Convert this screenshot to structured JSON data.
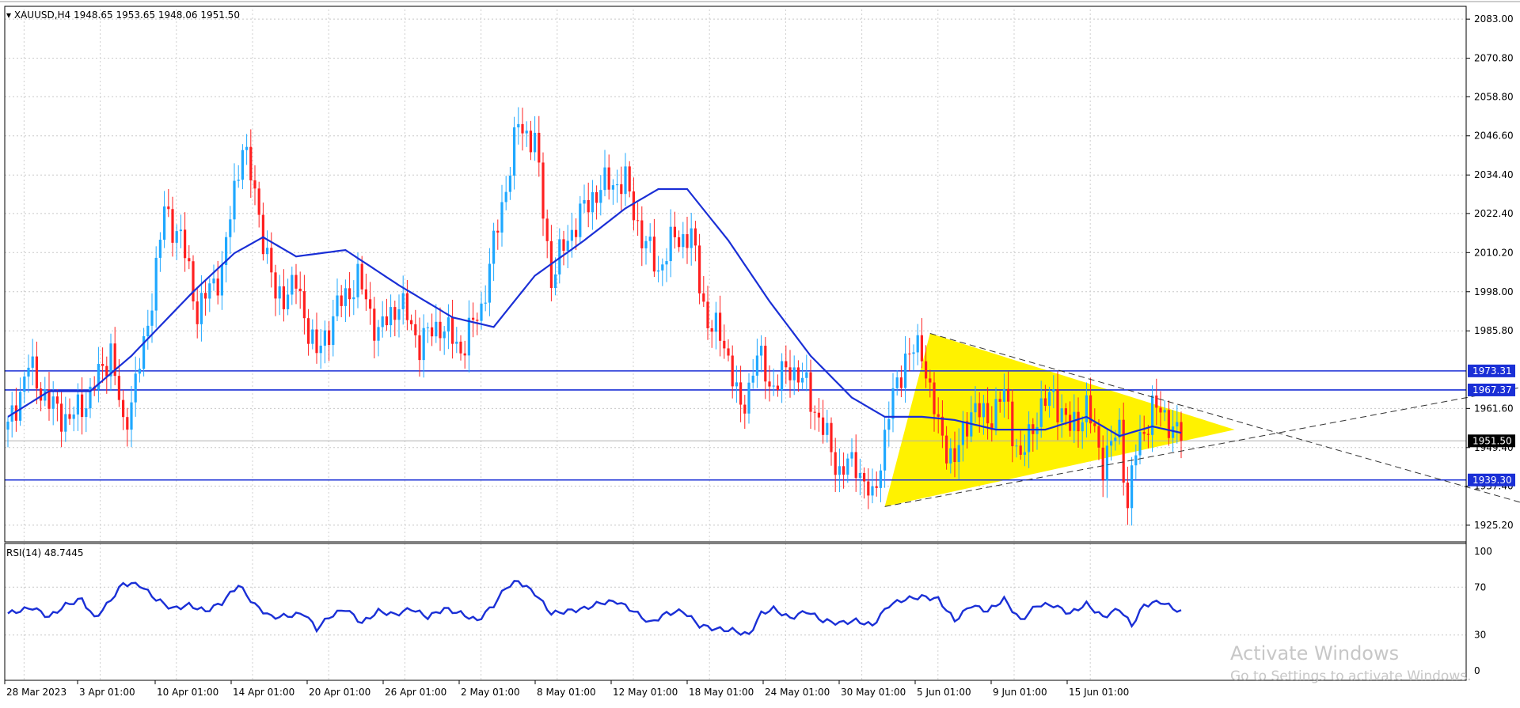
{
  "header": {
    "symbol": "XAUUSD,H4",
    "ohlc": "1948.65 1953.65 1948.06 1951.50"
  },
  "rsi_header": "RSI(14) 48.7445",
  "watermark": {
    "line1": "Activate Windows",
    "line2": "Go to Settings to activate Windows."
  },
  "colors": {
    "bull": "#1fa8ff",
    "bear": "#ff2020",
    "ma": "#1a2fd6",
    "level": "#1a2fd6",
    "triangle": "#fff200",
    "rsi": "#1a2fd6"
  },
  "chart_data": [
    {
      "type": "candlestick",
      "symbol": "XAUUSD",
      "timeframe": "H4",
      "ylim": [
        1920,
        2086
      ],
      "y_ticks": [
        "2083.00",
        "2070.80",
        "2058.80",
        "2046.60",
        "2034.40",
        "2022.40",
        "2010.20",
        "1998.00",
        "1985.80",
        "1961.60",
        "1949.40",
        "1937.40",
        "1925.20"
      ],
      "x_ticks": [
        "28 Mar 2023",
        "3 Apr 01:00",
        "10 Apr 01:00",
        "14 Apr 01:00",
        "20 Apr 01:00",
        "26 Apr 01:00",
        "2 May 01:00",
        "8 May 01:00",
        "12 May 01:00",
        "18 May 01:00",
        "24 May 01:00",
        "30 May 01:00",
        "5 Jun 01:00",
        "9 Jun 01:00",
        "15 Jun 01:00"
      ],
      "anchors": [
        {
          "i": 0,
          "p": 1955
        },
        {
          "i": 5,
          "p": 1975
        },
        {
          "i": 10,
          "p": 1963
        },
        {
          "i": 15,
          "p": 1958
        },
        {
          "i": 20,
          "p": 1966
        },
        {
          "i": 25,
          "p": 1980
        },
        {
          "i": 28,
          "p": 1955
        },
        {
          "i": 33,
          "p": 1980
        },
        {
          "i": 38,
          "p": 2023
        },
        {
          "i": 42,
          "p": 2015
        },
        {
          "i": 46,
          "p": 1992
        },
        {
          "i": 52,
          "p": 2005
        },
        {
          "i": 57,
          "p": 2045
        },
        {
          "i": 61,
          "p": 2022
        },
        {
          "i": 65,
          "p": 1996
        },
        {
          "i": 70,
          "p": 2000
        },
        {
          "i": 75,
          "p": 1978
        },
        {
          "i": 80,
          "p": 1993
        },
        {
          "i": 85,
          "p": 2002
        },
        {
          "i": 90,
          "p": 1985
        },
        {
          "i": 95,
          "p": 1995
        },
        {
          "i": 100,
          "p": 1982
        },
        {
          "i": 105,
          "p": 1988
        },
        {
          "i": 110,
          "p": 1980
        },
        {
          "i": 115,
          "p": 1993
        },
        {
          "i": 120,
          "p": 2025
        },
        {
          "i": 124,
          "p": 2050
        },
        {
          "i": 128,
          "p": 2045
        },
        {
          "i": 132,
          "p": 2002
        },
        {
          "i": 136,
          "p": 2015
        },
        {
          "i": 142,
          "p": 2028
        },
        {
          "i": 146,
          "p": 2032
        },
        {
          "i": 150,
          "p": 2032
        },
        {
          "i": 154,
          "p": 2015
        },
        {
          "i": 158,
          "p": 2005
        },
        {
          "i": 162,
          "p": 2015
        },
        {
          "i": 166,
          "p": 2015
        },
        {
          "i": 170,
          "p": 1988
        },
        {
          "i": 174,
          "p": 1983
        },
        {
          "i": 178,
          "p": 1960
        },
        {
          "i": 182,
          "p": 1978
        },
        {
          "i": 186,
          "p": 1968
        },
        {
          "i": 190,
          "p": 1975
        },
        {
          "i": 194,
          "p": 1968
        },
        {
          "i": 198,
          "p": 1955
        },
        {
          "i": 202,
          "p": 1942
        },
        {
          "i": 206,
          "p": 1945
        },
        {
          "i": 210,
          "p": 1932
        },
        {
          "i": 214,
          "p": 1960
        },
        {
          "i": 218,
          "p": 1978
        },
        {
          "i": 222,
          "p": 1980
        },
        {
          "i": 226,
          "p": 1955
        },
        {
          "i": 230,
          "p": 1945
        },
        {
          "i": 234,
          "p": 1962
        },
        {
          "i": 238,
          "p": 1958
        },
        {
          "i": 242,
          "p": 1966
        },
        {
          "i": 246,
          "p": 1945
        },
        {
          "i": 250,
          "p": 1960
        },
        {
          "i": 254,
          "p": 1966
        },
        {
          "i": 258,
          "p": 1955
        },
        {
          "i": 262,
          "p": 1962
        },
        {
          "i": 266,
          "p": 1945
        },
        {
          "i": 270,
          "p": 1955
        },
        {
          "i": 272,
          "p": 1932
        },
        {
          "i": 274,
          "p": 1948
        },
        {
          "i": 278,
          "p": 1962
        },
        {
          "i": 282,
          "p": 1958
        },
        {
          "i": 285,
          "p": 1951.5
        }
      ],
      "moving_average": [
        {
          "i": 0,
          "p": 1959
        },
        {
          "i": 10,
          "p": 1967
        },
        {
          "i": 20,
          "p": 1967
        },
        {
          "i": 30,
          "p": 1978
        },
        {
          "i": 45,
          "p": 1998
        },
        {
          "i": 55,
          "p": 2010
        },
        {
          "i": 62,
          "p": 2015
        },
        {
          "i": 70,
          "p": 2009
        },
        {
          "i": 82,
          "p": 2011
        },
        {
          "i": 95,
          "p": 2000
        },
        {
          "i": 108,
          "p": 1990
        },
        {
          "i": 118,
          "p": 1987
        },
        {
          "i": 128,
          "p": 2003
        },
        {
          "i": 140,
          "p": 2014
        },
        {
          "i": 150,
          "p": 2024
        },
        {
          "i": 158,
          "p": 2030
        },
        {
          "i": 165,
          "p": 2030
        },
        {
          "i": 175,
          "p": 2014
        },
        {
          "i": 185,
          "p": 1995
        },
        {
          "i": 195,
          "p": 1978
        },
        {
          "i": 205,
          "p": 1965
        },
        {
          "i": 213,
          "p": 1959
        },
        {
          "i": 222,
          "p": 1959
        },
        {
          "i": 230,
          "p": 1958
        },
        {
          "i": 240,
          "p": 1955
        },
        {
          "i": 252,
          "p": 1955
        },
        {
          "i": 262,
          "p": 1959
        },
        {
          "i": 270,
          "p": 1953
        },
        {
          "i": 278,
          "p": 1956
        },
        {
          "i": 285,
          "p": 1954
        }
      ],
      "horizontal_levels": [
        {
          "value": 1973.31,
          "label": "1973.31"
        },
        {
          "value": 1967.37,
          "label": "1967.37"
        },
        {
          "value": 1939.3,
          "label": "1939.30"
        }
      ],
      "current_price": {
        "value": 1951.5,
        "label": "1951.50"
      },
      "triangle": {
        "points": [
          [
            213,
            1931
          ],
          [
            224,
            1985
          ],
          [
            298,
            1955
          ]
        ]
      },
      "trendlines": [
        {
          "from": [
            224,
            1985
          ],
          "to": [
            371,
            1931
          ],
          "style": "dashed"
        },
        {
          "from": [
            213,
            1931
          ],
          "to": [
            371,
            1969
          ],
          "style": "dashed"
        }
      ]
    },
    {
      "type": "line",
      "name": "RSI(14)",
      "value_shown": 48.7445,
      "ylim": [
        0,
        100
      ],
      "y_ticks": [
        "100",
        "70",
        "30",
        "0"
      ],
      "anchors": [
        {
          "i": 0,
          "p": 48
        },
        {
          "i": 6,
          "p": 53
        },
        {
          "i": 10,
          "p": 45
        },
        {
          "i": 14,
          "p": 55
        },
        {
          "i": 18,
          "p": 60
        },
        {
          "i": 21,
          "p": 44
        },
        {
          "i": 24,
          "p": 55
        },
        {
          "i": 28,
          "p": 73
        },
        {
          "i": 32,
          "p": 72
        },
        {
          "i": 36,
          "p": 60
        },
        {
          "i": 40,
          "p": 52
        },
        {
          "i": 44,
          "p": 55
        },
        {
          "i": 48,
          "p": 50
        },
        {
          "i": 52,
          "p": 57
        },
        {
          "i": 56,
          "p": 72
        },
        {
          "i": 60,
          "p": 55
        },
        {
          "i": 64,
          "p": 45
        },
        {
          "i": 68,
          "p": 46
        },
        {
          "i": 72,
          "p": 48
        },
        {
          "i": 75,
          "p": 35
        },
        {
          "i": 78,
          "p": 45
        },
        {
          "i": 82,
          "p": 52
        },
        {
          "i": 86,
          "p": 40
        },
        {
          "i": 90,
          "p": 50
        },
        {
          "i": 94,
          "p": 47
        },
        {
          "i": 98,
          "p": 52
        },
        {
          "i": 102,
          "p": 45
        },
        {
          "i": 106,
          "p": 52
        },
        {
          "i": 110,
          "p": 48
        },
        {
          "i": 114,
          "p": 42
        },
        {
          "i": 118,
          "p": 55
        },
        {
          "i": 121,
          "p": 70
        },
        {
          "i": 124,
          "p": 75
        },
        {
          "i": 128,
          "p": 65
        },
        {
          "i": 132,
          "p": 48
        },
        {
          "i": 136,
          "p": 50
        },
        {
          "i": 140,
          "p": 52
        },
        {
          "i": 144,
          "p": 57
        },
        {
          "i": 148,
          "p": 58
        },
        {
          "i": 152,
          "p": 50
        },
        {
          "i": 156,
          "p": 40
        },
        {
          "i": 160,
          "p": 48
        },
        {
          "i": 164,
          "p": 50
        },
        {
          "i": 168,
          "p": 38
        },
        {
          "i": 172,
          "p": 35
        },
        {
          "i": 176,
          "p": 34
        },
        {
          "i": 180,
          "p": 30
        },
        {
          "i": 183,
          "p": 48
        },
        {
          "i": 186,
          "p": 52
        },
        {
          "i": 190,
          "p": 44
        },
        {
          "i": 194,
          "p": 50
        },
        {
          "i": 198,
          "p": 42
        },
        {
          "i": 202,
          "p": 40
        },
        {
          "i": 206,
          "p": 42
        },
        {
          "i": 210,
          "p": 38
        },
        {
          "i": 214,
          "p": 55
        },
        {
          "i": 218,
          "p": 60
        },
        {
          "i": 222,
          "p": 62
        },
        {
          "i": 226,
          "p": 60
        },
        {
          "i": 230,
          "p": 42
        },
        {
          "i": 234,
          "p": 55
        },
        {
          "i": 238,
          "p": 50
        },
        {
          "i": 242,
          "p": 60
        },
        {
          "i": 246,
          "p": 42
        },
        {
          "i": 250,
          "p": 55
        },
        {
          "i": 254,
          "p": 55
        },
        {
          "i": 258,
          "p": 48
        },
        {
          "i": 262,
          "p": 56
        },
        {
          "i": 266,
          "p": 45
        },
        {
          "i": 270,
          "p": 52
        },
        {
          "i": 273,
          "p": 38
        },
        {
          "i": 276,
          "p": 55
        },
        {
          "i": 280,
          "p": 58
        },
        {
          "i": 285,
          "p": 49
        }
      ]
    }
  ]
}
